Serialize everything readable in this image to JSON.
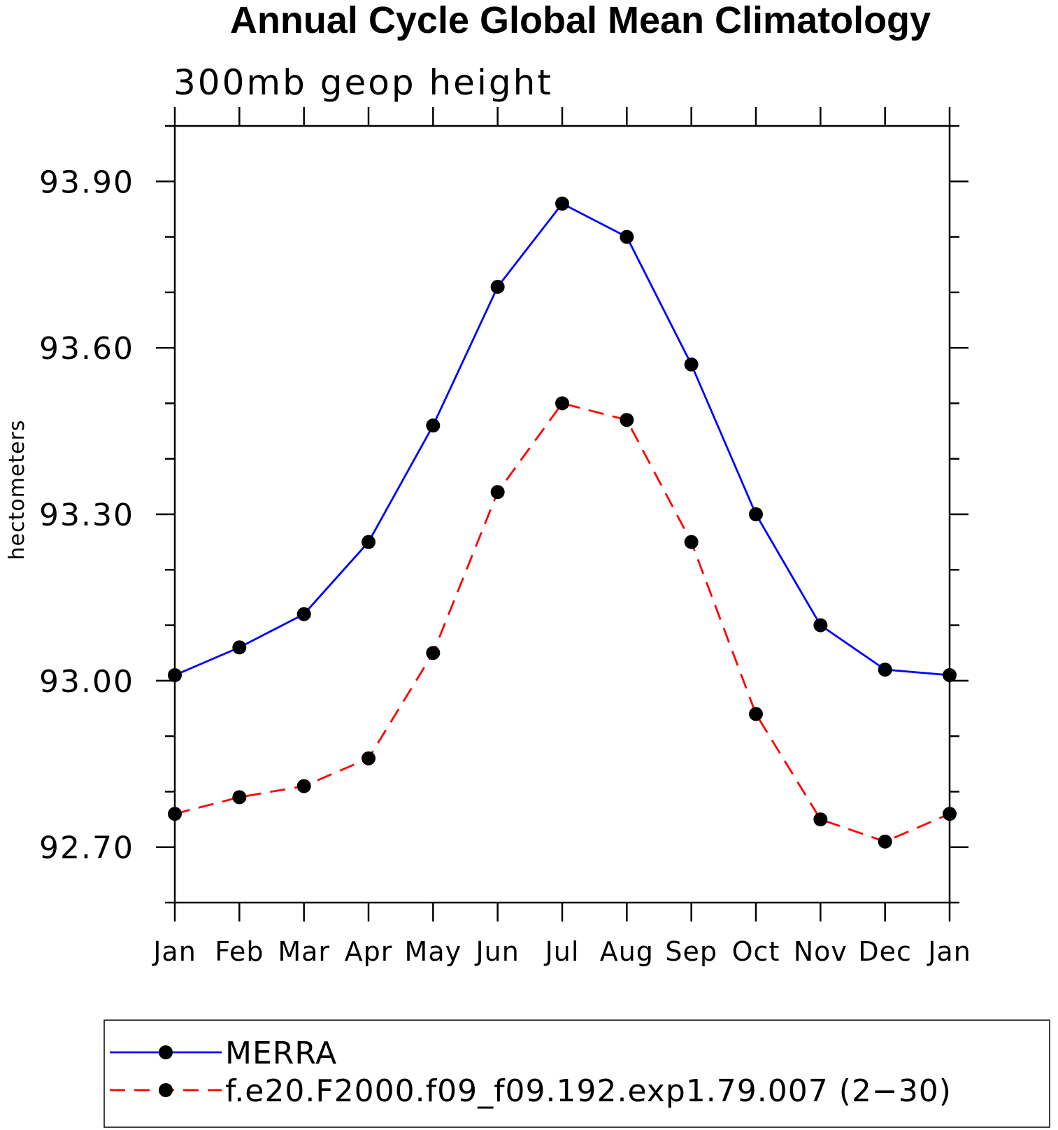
{
  "chart_data": {
    "type": "line",
    "title": "Annual Cycle Global Mean Climatology",
    "subtitle": "300mb geop height",
    "xlabel": "",
    "ylabel": "hectometers",
    "categories": [
      "Jan",
      "Feb",
      "Mar",
      "Apr",
      "May",
      "Jun",
      "Jul",
      "Aug",
      "Sep",
      "Oct",
      "Nov",
      "Dec",
      "Jan"
    ],
    "yticks": [
      "93.90",
      "93.60",
      "93.30",
      "93.00",
      "92.70"
    ],
    "ylim": [
      92.6,
      94.0
    ],
    "grid": false,
    "legend_placement": "bottom",
    "series": [
      {
        "name": "MERRA",
        "color": "#0000ff",
        "dash": "solid",
        "values": [
          93.01,
          93.06,
          93.12,
          93.25,
          93.46,
          93.71,
          93.86,
          93.8,
          93.57,
          93.3,
          93.1,
          93.02,
          93.01
        ]
      },
      {
        "name": "f.e20.F2000.f09_f09.192.exp1.79.007 (2−30)",
        "color": "#ff0000",
        "dash": "dashed",
        "values": [
          92.76,
          92.79,
          92.81,
          92.86,
          93.05,
          93.34,
          93.5,
          93.47,
          93.25,
          92.94,
          92.75,
          92.71,
          92.76
        ]
      }
    ]
  }
}
